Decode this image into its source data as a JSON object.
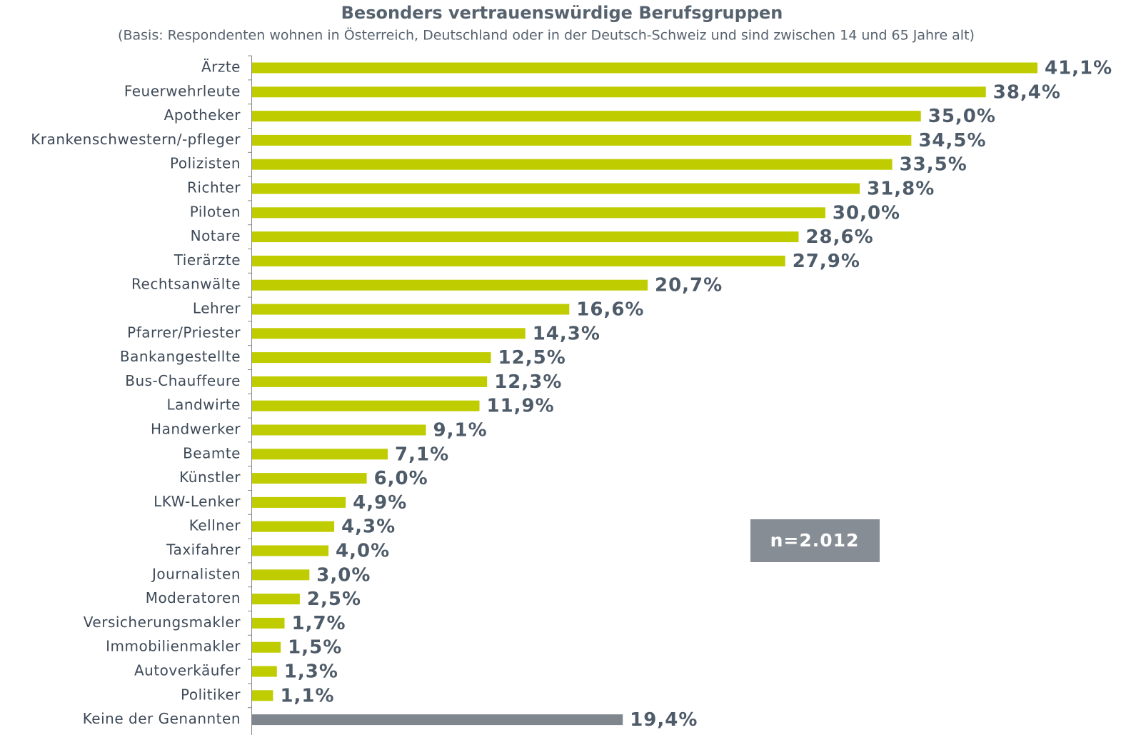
{
  "chart_data": {
    "type": "bar",
    "orientation": "horizontal",
    "title": "Besonders vertrauenswürdige Berufsgruppen",
    "subtitle": "(Basis: Respondenten wohnen in Österreich, Deutschland oder in der Deutsch-Schweiz und sind zwischen 14 und 65 Jahre alt)",
    "annotation": "n=2.012",
    "categories": [
      "Ärzte",
      "Feuerwehrleute",
      "Apotheker",
      "Krankenschwestern/-pfleger",
      "Polizisten",
      "Richter",
      "Piloten",
      "Notare",
      "Tierärzte",
      "Rechtsanwälte",
      "Lehrer",
      "Pfarrer/Priester",
      "Bankangestellte",
      "Bus-Chauffeure",
      "Landwirte",
      "Handwerker",
      "Beamte",
      "Künstler",
      "LKW-Lenker",
      "Kellner",
      "Taxifahrer",
      "Journalisten",
      "Moderatoren",
      "Versicherungsmakler",
      "Immobilienmakler",
      "Autoverkäufer",
      "Politiker",
      "Keine der Genannten"
    ],
    "values": [
      41.1,
      38.4,
      35.0,
      34.5,
      33.5,
      31.8,
      30.0,
      28.6,
      27.9,
      20.7,
      16.6,
      14.3,
      12.5,
      12.3,
      11.9,
      9.1,
      7.1,
      6.0,
      4.9,
      4.3,
      4.0,
      3.0,
      2.5,
      1.7,
      1.5,
      1.3,
      1.1,
      19.4
    ],
    "value_labels": [
      "41,1%",
      "38,4%",
      "35,0%",
      "34,5%",
      "33,5%",
      "31,8%",
      "30,0%",
      "28,6%",
      "27,9%",
      "20,7%",
      "16,6%",
      "14,3%",
      "12,5%",
      "12,3%",
      "11,9%",
      "9,1%",
      "7,1%",
      "6,0%",
      "4,9%",
      "4,3%",
      "4,0%",
      "3,0%",
      "2,5%",
      "1,7%",
      "1,5%",
      "1,3%",
      "1,1%",
      "19,4%"
    ],
    "colors": [
      "#bfcd00",
      "#bfcd00",
      "#bfcd00",
      "#bfcd00",
      "#bfcd00",
      "#bfcd00",
      "#bfcd00",
      "#bfcd00",
      "#bfcd00",
      "#bfcd00",
      "#bfcd00",
      "#bfcd00",
      "#bfcd00",
      "#bfcd00",
      "#bfcd00",
      "#bfcd00",
      "#bfcd00",
      "#bfcd00",
      "#bfcd00",
      "#bfcd00",
      "#bfcd00",
      "#bfcd00",
      "#bfcd00",
      "#bfcd00",
      "#bfcd00",
      "#bfcd00",
      "#bfcd00",
      "#7f868d"
    ]
  }
}
